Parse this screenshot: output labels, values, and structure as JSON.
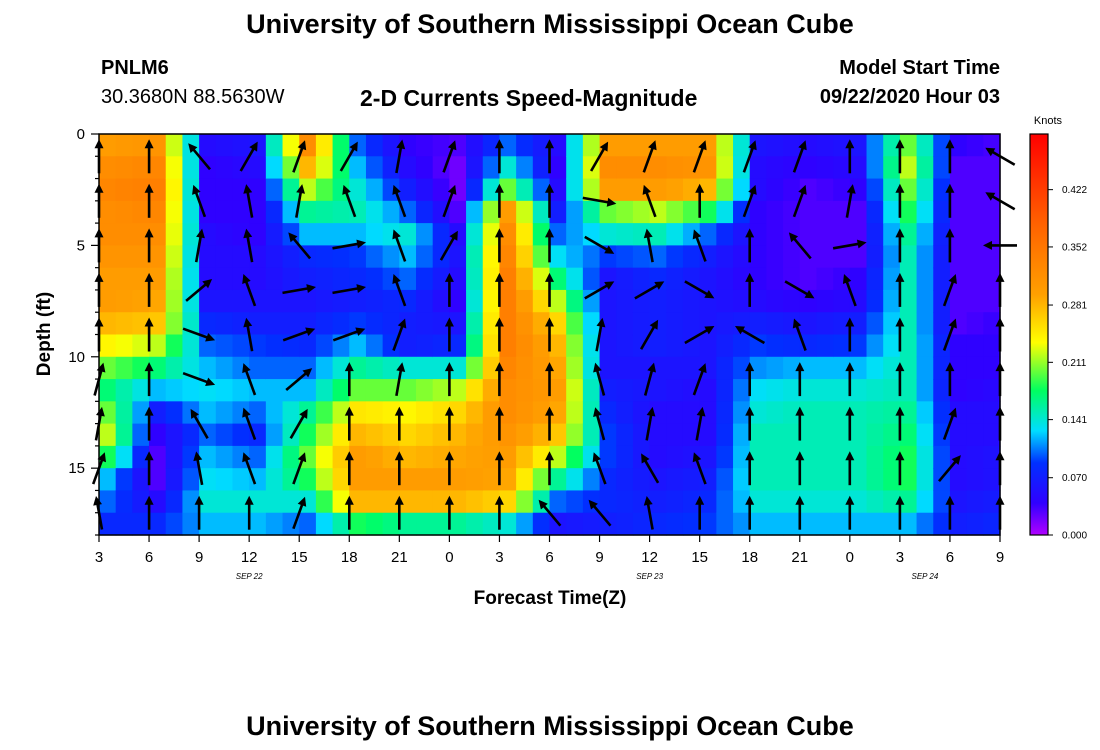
{
  "header": {
    "title": "University of Southern Mississippi Ocean Cube",
    "station": "PNLM6",
    "coords": "30.3680N 88.5630W",
    "product": "2-D Currents Speed-Magnitude",
    "model_label": "Model Start Time",
    "model_time": "09/22/2020 Hour 03"
  },
  "footer": {
    "title": "University of Southern Mississippi Ocean Cube"
  },
  "chart_data": {
    "type": "heatmap",
    "title": "2-D Currents Speed-Magnitude",
    "xlabel": "Forecast Time(Z)",
    "ylabel": "Depth (ft)",
    "x_ticks": [
      "3",
      "6",
      "9",
      "12",
      "15",
      "18",
      "21",
      "0",
      "3",
      "6",
      "9",
      "12",
      "15",
      "18",
      "21",
      "0",
      "3",
      "6",
      "9"
    ],
    "date_labels": [
      {
        "label": "SEP 22",
        "at_tick": 3
      },
      {
        "label": "SEP 23",
        "at_tick": 11
      },
      {
        "label": "SEP 24",
        "at_tick": 16.5
      }
    ],
    "y_ticks": [
      "0",
      "5",
      "10",
      "15"
    ],
    "y_tick_values": [
      0,
      5,
      10,
      15
    ],
    "ylim": [
      0,
      18
    ],
    "y_inverted": true,
    "colorbar": {
      "unit": "Knots",
      "ticks": [
        "0.422",
        "0.352",
        "0.281",
        "0.211",
        "0.141",
        "0.070",
        "0.000"
      ],
      "tick_values": [
        0.422,
        0.352,
        0.281,
        0.211,
        0.141,
        0.07,
        0.0
      ],
      "range": [
        0.0,
        0.49
      ]
    },
    "depths": [
      0.5,
      1.5,
      2.5,
      3.5,
      4.5,
      5.5,
      6.5,
      7.5,
      8.5,
      9.5,
      10.5,
      11.5,
      12.5,
      13.5,
      14.5,
      15.5,
      16.5,
      17.5
    ],
    "times": [
      3,
      6,
      9,
      12,
      15,
      18,
      21,
      24,
      27,
      30,
      33,
      36,
      39,
      42,
      45,
      48,
      51,
      54,
      57
    ],
    "speed_profiles": [
      [
        0.3,
        0.32,
        0.33,
        0.32,
        0.32,
        0.31,
        0.3,
        0.3,
        0.28,
        0.24,
        0.2,
        0.17,
        0.2,
        0.22,
        0.18,
        0.12,
        0.1,
        0.08
      ],
      [
        0.31,
        0.33,
        0.34,
        0.33,
        0.32,
        0.31,
        0.3,
        0.29,
        0.27,
        0.22,
        0.17,
        0.12,
        0.07,
        0.04,
        0.03,
        0.03,
        0.05,
        0.08
      ],
      [
        0.05,
        0.04,
        0.04,
        0.04,
        0.05,
        0.05,
        0.05,
        0.06,
        0.08,
        0.1,
        0.12,
        0.13,
        0.12,
        0.1,
        0.12,
        0.13,
        0.14,
        0.12
      ],
      [
        0.06,
        0.05,
        0.04,
        0.04,
        0.04,
        0.05,
        0.05,
        0.06,
        0.07,
        0.09,
        0.1,
        0.12,
        0.1,
        0.08,
        0.1,
        0.12,
        0.14,
        0.12
      ],
      [
        0.32,
        0.28,
        0.22,
        0.16,
        0.12,
        0.08,
        0.07,
        0.06,
        0.07,
        0.08,
        0.1,
        0.12,
        0.16,
        0.18,
        0.2,
        0.18,
        0.14,
        0.1
      ],
      [
        0.1,
        0.12,
        0.14,
        0.15,
        0.12,
        0.09,
        0.08,
        0.07,
        0.09,
        0.12,
        0.16,
        0.2,
        0.25,
        0.28,
        0.3,
        0.3,
        0.28,
        0.18
      ],
      [
        0.04,
        0.05,
        0.07,
        0.1,
        0.14,
        0.12,
        0.1,
        0.08,
        0.07,
        0.07,
        0.14,
        0.2,
        0.24,
        0.26,
        0.28,
        0.3,
        0.28,
        0.16
      ],
      [
        0.03,
        0.02,
        0.02,
        0.03,
        0.05,
        0.06,
        0.05,
        0.04,
        0.06,
        0.08,
        0.14,
        0.22,
        0.26,
        0.28,
        0.29,
        0.3,
        0.28,
        0.16
      ],
      [
        0.1,
        0.14,
        0.2,
        0.3,
        0.32,
        0.33,
        0.34,
        0.34,
        0.34,
        0.34,
        0.33,
        0.32,
        0.32,
        0.31,
        0.3,
        0.29,
        0.26,
        0.14
      ],
      [
        0.05,
        0.04,
        0.05,
        0.07,
        0.1,
        0.13,
        0.17,
        0.22,
        0.26,
        0.28,
        0.29,
        0.3,
        0.29,
        0.27,
        0.22,
        0.16,
        0.1,
        0.06
      ],
      [
        0.3,
        0.32,
        0.3,
        0.2,
        0.14,
        0.09,
        0.06,
        0.06,
        0.06,
        0.06,
        0.06,
        0.07,
        0.08,
        0.09,
        0.09,
        0.08,
        0.08,
        0.07
      ],
      [
        0.3,
        0.32,
        0.3,
        0.22,
        0.15,
        0.1,
        0.08,
        0.07,
        0.07,
        0.07,
        0.06,
        0.06,
        0.05,
        0.05,
        0.05,
        0.06,
        0.07,
        0.08
      ],
      [
        0.3,
        0.31,
        0.28,
        0.18,
        0.1,
        0.07,
        0.06,
        0.06,
        0.06,
        0.06,
        0.06,
        0.05,
        0.05,
        0.05,
        0.06,
        0.07,
        0.08,
        0.09
      ],
      [
        0.06,
        0.05,
        0.05,
        0.04,
        0.04,
        0.04,
        0.04,
        0.05,
        0.07,
        0.09,
        0.11,
        0.13,
        0.14,
        0.15,
        0.15,
        0.15,
        0.14,
        0.12
      ],
      [
        0.05,
        0.04,
        0.03,
        0.03,
        0.03,
        0.03,
        0.03,
        0.04,
        0.06,
        0.08,
        0.12,
        0.14,
        0.15,
        0.15,
        0.15,
        0.15,
        0.14,
        0.12
      ],
      [
        0.06,
        0.05,
        0.04,
        0.03,
        0.03,
        0.03,
        0.04,
        0.05,
        0.07,
        0.09,
        0.12,
        0.14,
        0.15,
        0.15,
        0.15,
        0.15,
        0.14,
        0.12
      ],
      [
        0.2,
        0.22,
        0.2,
        0.18,
        0.16,
        0.15,
        0.15,
        0.15,
        0.15,
        0.15,
        0.15,
        0.15,
        0.16,
        0.17,
        0.18,
        0.18,
        0.16,
        0.12
      ],
      [
        0.04,
        0.03,
        0.03,
        0.03,
        0.03,
        0.03,
        0.03,
        0.03,
        0.03,
        0.04,
        0.04,
        0.04,
        0.05,
        0.05,
        0.05,
        0.05,
        0.06,
        0.07
      ],
      [
        0.03,
        0.03,
        0.03,
        0.03,
        0.03,
        0.03,
        0.03,
        0.03,
        0.04,
        0.04,
        0.04,
        0.05,
        0.05,
        0.05,
        0.06,
        0.06,
        0.07,
        0.08
      ]
    ],
    "arrow_depths": [
      1,
      3,
      5,
      7,
      9,
      11,
      13,
      15,
      17
    ],
    "arrow_directions_deg": [
      [
        0,
        0,
        0,
        0,
        0,
        15,
        10,
        20,
        -10
      ],
      [
        0,
        0,
        0,
        0,
        0,
        0,
        0,
        0,
        0
      ],
      [
        -40,
        -20,
        10,
        50,
        110,
        110,
        -30,
        -10,
        0
      ],
      [
        30,
        -10,
        -10,
        -20,
        -10,
        -20,
        -20,
        -20,
        0
      ],
      [
        20,
        10,
        -40,
        80,
        70,
        50,
        30,
        20,
        20
      ],
      [
        30,
        -20,
        80,
        80,
        70,
        0,
        0,
        0,
        0
      ],
      [
        10,
        -20,
        -20,
        -20,
        20,
        10,
        0,
        0,
        0
      ],
      [
        20,
        20,
        30,
        0,
        0,
        0,
        0,
        0,
        0
      ],
      [
        0,
        0,
        0,
        0,
        0,
        0,
        0,
        0,
        0
      ],
      [
        0,
        0,
        0,
        0,
        0,
        0,
        0,
        0,
        -40
      ],
      [
        30,
        100,
        120,
        60,
        10,
        -15,
        -15,
        -20,
        -40
      ],
      [
        20,
        -20,
        -10,
        60,
        30,
        15,
        10,
        -30,
        -10
      ],
      [
        20,
        0,
        -20,
        120,
        60,
        20,
        10,
        -20,
        0
      ],
      [
        20,
        20,
        0,
        0,
        -60,
        0,
        0,
        0,
        0
      ],
      [
        20,
        20,
        -40,
        120,
        -20,
        0,
        0,
        0,
        0
      ],
      [
        0,
        10,
        80,
        -20,
        0,
        0,
        0,
        0,
        0
      ],
      [
        0,
        0,
        0,
        0,
        0,
        0,
        0,
        0,
        0
      ],
      [
        0,
        0,
        0,
        20,
        20,
        0,
        20,
        40,
        0
      ],
      [
        -60,
        -60,
        -90,
        0,
        0,
        0,
        0,
        0,
        0
      ]
    ]
  }
}
